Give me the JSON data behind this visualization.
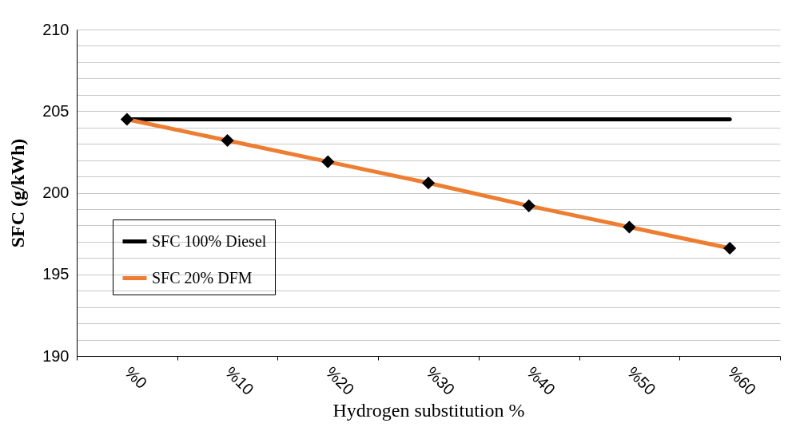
{
  "chart_data": {
    "type": "line",
    "xlabel": "Hydrogen substitution %",
    "ylabel": "SFC (g/kWh)",
    "categories": [
      "%0",
      "%10",
      "%20",
      "%30",
      "%40",
      "%50",
      "%60"
    ],
    "series": [
      {
        "name": "SFC 100% Diesel",
        "color": "#000000",
        "marker": "none",
        "values": [
          204.5,
          204.5,
          204.5,
          204.5,
          204.5,
          204.5,
          204.5
        ]
      },
      {
        "name": "SFC 20% DFM",
        "color": "#ed7d31",
        "marker": "diamond",
        "values": [
          204.5,
          203.2,
          201.9,
          200.6,
          199.2,
          197.9,
          196.6
        ]
      }
    ],
    "ylim": [
      190,
      210
    ],
    "yticks": [
      190,
      {
        "value": 191,
        "label": null
      },
      {
        "value": 192,
        "label": null
      },
      {
        "value": 193,
        "label": null
      },
      {
        "value": 194,
        "label": null
      },
      195,
      {
        "value": 196,
        "label": null
      },
      {
        "value": 197,
        "label": null
      },
      {
        "value": 198,
        "label": null
      },
      {
        "value": 199,
        "label": null
      },
      200,
      {
        "value": 201,
        "label": null
      },
      {
        "value": 202,
        "label": null
      },
      {
        "value": 203,
        "label": null
      },
      {
        "value": 204,
        "label": null
      },
      205,
      {
        "value": 206,
        "label": null
      },
      {
        "value": 207,
        "label": null
      },
      {
        "value": 208,
        "label": null
      },
      {
        "value": 209,
        "label": null
      },
      210
    ],
    "grid": "y",
    "legend": "left",
    "line_style": "solid"
  }
}
